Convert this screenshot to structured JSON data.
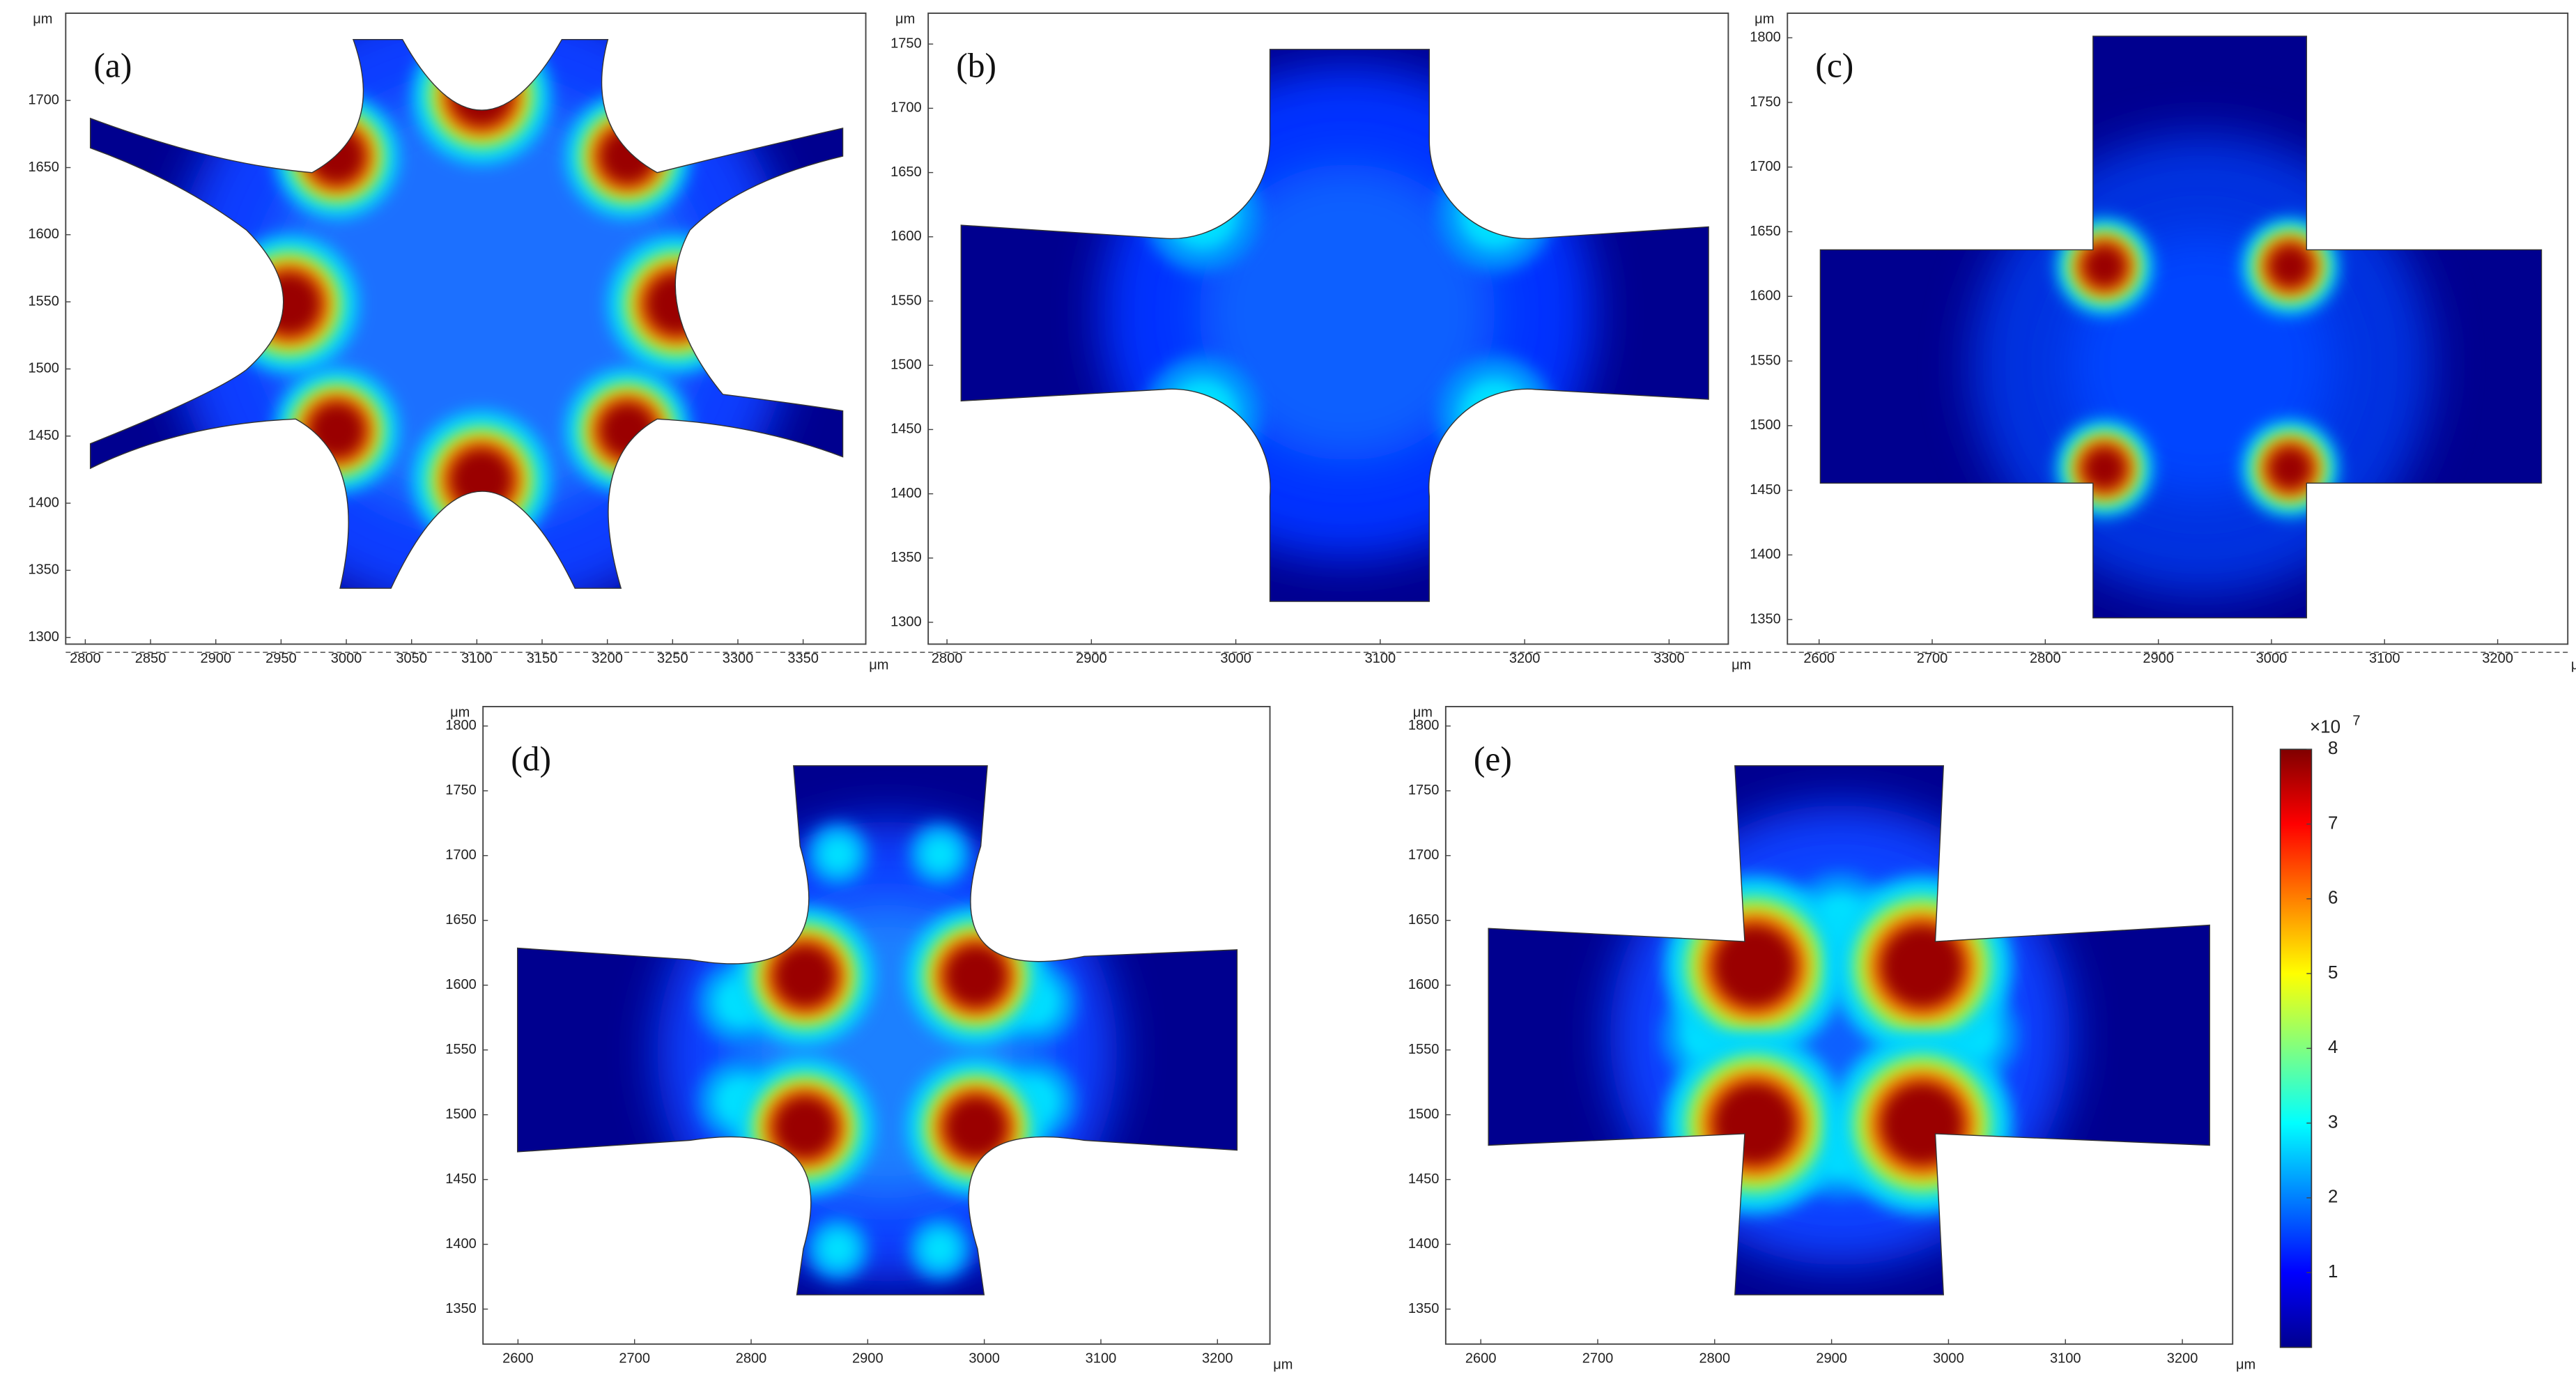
{
  "chart_data": [
    {
      "type": "contour",
      "label": "(a)",
      "xlabel": "μm",
      "ylabel": "μm",
      "xlim": [
        2785,
        3398
      ],
      "ylim": [
        1295,
        1765
      ],
      "xticks": [
        2800,
        2850,
        2900,
        2950,
        3000,
        3050,
        3100,
        3150,
        3200,
        3250,
        3300,
        3350
      ],
      "yticks": [
        1300,
        1350,
        1400,
        1450,
        1500,
        1550,
        1600,
        1650,
        1700
      ]
    },
    {
      "type": "contour",
      "label": "(b)",
      "xlabel": "μm",
      "ylabel": "μm",
      "xlim": [
        2787,
        3341
      ],
      "ylim": [
        1283,
        1774
      ],
      "xticks": [
        2800,
        2900,
        3000,
        3100,
        3200,
        3300
      ],
      "yticks": [
        1300,
        1350,
        1400,
        1450,
        1500,
        1550,
        1600,
        1650,
        1700,
        1750
      ]
    },
    {
      "type": "contour",
      "label": "(c)",
      "xlabel": "μm",
      "ylabel": "μm",
      "xlim": [
        2572,
        3262
      ],
      "ylim": [
        1331,
        1819
      ],
      "xticks": [
        2600,
        2700,
        2800,
        2900,
        3000,
        3100,
        3200
      ],
      "yticks": [
        1350,
        1400,
        1450,
        1500,
        1550,
        1600,
        1650,
        1700,
        1750,
        1800
      ]
    },
    {
      "type": "contour",
      "label": "(d)",
      "xlabel": "μm",
      "ylabel": "μm",
      "xlim": [
        2570,
        3245
      ],
      "ylim": [
        1323,
        1815
      ],
      "xticks": [
        2600,
        2700,
        2800,
        2900,
        3000,
        3100,
        3200
      ],
      "yticks": [
        1350,
        1400,
        1450,
        1500,
        1550,
        1600,
        1650,
        1700,
        1750,
        1800
      ]
    },
    {
      "type": "contour",
      "label": "(e)",
      "xlabel": "μm",
      "ylabel": "μm",
      "xlim": [
        2570,
        3243
      ],
      "ylim": [
        1323,
        1815
      ],
      "xticks": [
        2600,
        2700,
        2800,
        2900,
        3000,
        3100,
        3200
      ],
      "yticks": [
        1350,
        1400,
        1450,
        1500,
        1550,
        1600,
        1650,
        1700,
        1750,
        1800
      ]
    },
    {
      "type": "colorbar",
      "label": "×10",
      "label_exponent": "7",
      "ylim": [
        0,
        8
      ],
      "yticks": [
        1,
        2,
        3,
        4,
        5,
        6,
        7,
        8
      ],
      "colors": [
        "#00008f",
        "#0000ff",
        "#0080ff",
        "#00ffff",
        "#80ff80",
        "#ffff00",
        "#ff8000",
        "#ff0000",
        "#800000"
      ]
    }
  ]
}
